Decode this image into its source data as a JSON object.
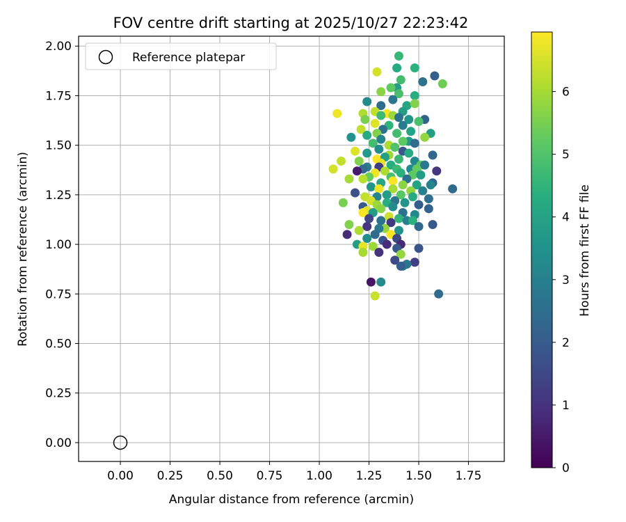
{
  "chart_data": {
    "type": "scatter",
    "title": "FOV centre drift starting at 2025/10/27 22:23:42",
    "xlabel": "Angular distance from reference (arcmin)",
    "ylabel": "Rotation from reference (arcmin)",
    "xlim": [
      -0.21,
      1.93
    ],
    "ylim": [
      -0.095,
      2.05
    ],
    "xticks": [
      0.0,
      0.25,
      0.5,
      0.75,
      1.0,
      1.25,
      1.5,
      1.75
    ],
    "xtick_labels": [
      "0.00",
      "0.25",
      "0.50",
      "0.75",
      "1.00",
      "1.25",
      "1.50",
      "1.75"
    ],
    "yticks": [
      0.0,
      0.25,
      0.5,
      0.75,
      1.0,
      1.25,
      1.5,
      1.75,
      2.0
    ],
    "ytick_labels": [
      "0.00",
      "0.25",
      "0.50",
      "0.75",
      "1.00",
      "1.25",
      "1.50",
      "1.75",
      "2.00"
    ],
    "grid": true,
    "legend": {
      "position": "top-left",
      "entries": [
        "Reference platepar"
      ]
    },
    "reference_point": {
      "x": 0.0,
      "y": 0.0,
      "label": "Reference platepar"
    },
    "colorbar": {
      "label": "Hours from first FF file",
      "min": 0,
      "max": 6.95,
      "ticks": [
        0,
        1,
        2,
        3,
        4,
        5,
        6
      ],
      "tick_labels": [
        "0",
        "1",
        "2",
        "3",
        "4",
        "5",
        "6"
      ]
    },
    "points": [
      [
        1.4,
        1.95,
        4.6
      ],
      [
        1.39,
        1.89,
        4.2
      ],
      [
        1.48,
        1.89,
        4.4
      ],
      [
        1.29,
        1.87,
        6.5
      ],
      [
        1.58,
        1.85,
        2.1
      ],
      [
        1.52,
        1.82,
        2.6
      ],
      [
        1.62,
        1.81,
        5.4
      ],
      [
        1.41,
        1.83,
        4.8
      ],
      [
        1.39,
        1.79,
        3.8
      ],
      [
        1.36,
        1.79,
        5.2
      ],
      [
        1.31,
        1.77,
        5.7
      ],
      [
        1.4,
        1.76,
        4.9
      ],
      [
        1.48,
        1.75,
        4.3
      ],
      [
        1.37,
        1.73,
        2.7
      ],
      [
        1.24,
        1.72,
        3.3
      ],
      [
        1.31,
        1.7,
        2.4
      ],
      [
        1.44,
        1.7,
        4.1
      ],
      [
        1.48,
        1.71,
        5.6
      ],
      [
        1.42,
        1.67,
        3.9
      ],
      [
        1.22,
        1.66,
        6.1
      ],
      [
        1.28,
        1.67,
        6.3
      ],
      [
        1.09,
        1.66,
        6.8
      ],
      [
        1.34,
        1.66,
        6.9
      ],
      [
        1.37,
        1.65,
        5.9
      ],
      [
        1.31,
        1.65,
        4.7
      ],
      [
        1.4,
        1.64,
        2.6
      ],
      [
        1.45,
        1.63,
        3.6
      ],
      [
        1.53,
        1.63,
        2.2
      ],
      [
        1.5,
        1.62,
        4.9
      ],
      [
        1.23,
        1.63,
        5.5
      ],
      [
        1.28,
        1.61,
        6.6
      ],
      [
        1.35,
        1.6,
        4.5
      ],
      [
        1.42,
        1.6,
        2.9
      ],
      [
        1.21,
        1.58,
        6.3
      ],
      [
        1.32,
        1.58,
        2.6
      ],
      [
        1.56,
        1.56,
        3.9
      ],
      [
        1.46,
        1.57,
        4.0
      ],
      [
        1.39,
        1.56,
        4.8
      ],
      [
        1.29,
        1.56,
        5.6
      ],
      [
        1.24,
        1.55,
        4.2
      ],
      [
        1.16,
        1.54,
        3.5
      ],
      [
        1.53,
        1.54,
        5.8
      ],
      [
        1.35,
        1.5,
        6.1
      ],
      [
        1.45,
        1.52,
        3.7
      ],
      [
        1.42,
        1.52,
        5.2
      ],
      [
        1.31,
        1.53,
        3.1
      ],
      [
        1.48,
        1.51,
        2.4
      ],
      [
        1.27,
        1.51,
        4.8
      ],
      [
        1.38,
        1.49,
        5.0
      ],
      [
        1.3,
        1.48,
        3.3
      ],
      [
        1.18,
        1.47,
        6.6
      ],
      [
        1.42,
        1.47,
        1.9
      ],
      [
        1.45,
        1.46,
        4.2
      ],
      [
        1.24,
        1.46,
        3.7
      ],
      [
        1.35,
        1.45,
        5.9
      ],
      [
        1.57,
        1.45,
        2.3
      ],
      [
        1.29,
        1.43,
        6.9
      ],
      [
        1.33,
        1.44,
        3.9
      ],
      [
        1.4,
        1.43,
        4.6
      ],
      [
        1.48,
        1.42,
        3.2
      ],
      [
        1.2,
        1.42,
        5.6
      ],
      [
        1.31,
        1.41,
        6.7
      ],
      [
        1.11,
        1.42,
        6.3
      ],
      [
        1.51,
        1.4,
        5.1
      ],
      [
        1.36,
        1.4,
        4.3
      ],
      [
        1.53,
        1.4,
        2.8
      ],
      [
        1.24,
        1.39,
        2.9
      ],
      [
        1.3,
        1.39,
        1.2
      ],
      [
        1.39,
        1.38,
        4.7
      ],
      [
        1.46,
        1.38,
        3.3
      ],
      [
        1.49,
        1.38,
        5.3
      ],
      [
        1.22,
        1.38,
        2.4
      ],
      [
        1.07,
        1.38,
        6.5
      ],
      [
        1.33,
        1.37,
        6.1
      ],
      [
        1.59,
        1.37,
        1.1
      ],
      [
        1.19,
        1.37,
        0.5
      ],
      [
        1.28,
        1.36,
        6.8
      ],
      [
        1.41,
        1.36,
        4.4
      ],
      [
        1.47,
        1.35,
        5.2
      ],
      [
        1.51,
        1.35,
        3.8
      ],
      [
        1.36,
        1.34,
        4.9
      ],
      [
        1.25,
        1.34,
        5.3
      ],
      [
        1.15,
        1.33,
        6.0
      ],
      [
        1.22,
        1.33,
        6.2
      ],
      [
        1.44,
        1.33,
        2.6
      ],
      [
        1.37,
        1.32,
        6.9
      ],
      [
        1.57,
        1.31,
        2.2
      ],
      [
        1.31,
        1.31,
        4.1
      ],
      [
        1.49,
        1.3,
        4.0
      ],
      [
        1.42,
        1.3,
        5.7
      ],
      [
        1.56,
        1.3,
        3.1
      ],
      [
        1.26,
        1.29,
        3.6
      ],
      [
        1.67,
        1.28,
        2.4
      ],
      [
        1.37,
        1.28,
        6.0
      ],
      [
        1.3,
        1.28,
        6.8
      ],
      [
        1.46,
        1.27,
        5.8
      ],
      [
        1.52,
        1.27,
        3.0
      ],
      [
        1.18,
        1.26,
        1.7
      ],
      [
        1.41,
        1.25,
        5.1
      ],
      [
        1.34,
        1.25,
        3.8
      ],
      [
        1.23,
        1.24,
        6.3
      ],
      [
        1.29,
        1.24,
        3.1
      ],
      [
        1.47,
        1.24,
        4.2
      ],
      [
        1.55,
        1.23,
        2.5
      ],
      [
        1.38,
        1.22,
        2.7
      ],
      [
        1.26,
        1.22,
        6.5
      ],
      [
        1.34,
        1.21,
        4.3
      ],
      [
        1.43,
        1.21,
        3.6
      ],
      [
        1.12,
        1.21,
        5.5
      ],
      [
        1.29,
        1.2,
        5.9
      ],
      [
        1.22,
        1.19,
        1.9
      ],
      [
        1.5,
        1.2,
        2.0
      ],
      [
        1.55,
        1.18,
        2.2
      ],
      [
        1.37,
        1.19,
        3.3
      ],
      [
        1.24,
        1.17,
        6.6
      ],
      [
        1.31,
        1.18,
        5.7
      ],
      [
        1.42,
        1.16,
        2.6
      ],
      [
        1.27,
        1.16,
        3.8
      ],
      [
        1.22,
        1.16,
        6.9
      ],
      [
        1.48,
        1.15,
        3.2
      ],
      [
        1.35,
        1.14,
        6.4
      ],
      [
        1.4,
        1.13,
        4.5
      ],
      [
        1.25,
        1.13,
        1.4
      ],
      [
        1.44,
        1.12,
        3.0
      ],
      [
        1.31,
        1.12,
        2.6
      ],
      [
        1.47,
        1.12,
        4.4
      ],
      [
        1.36,
        1.11,
        1.2
      ],
      [
        1.57,
        1.1,
        1.9
      ],
      [
        1.15,
        1.1,
        5.6
      ],
      [
        1.24,
        1.09,
        1.1
      ],
      [
        1.33,
        1.08,
        5.8
      ],
      [
        1.3,
        1.08,
        2.8
      ],
      [
        1.5,
        1.09,
        2.3
      ],
      [
        1.4,
        1.07,
        3.5
      ],
      [
        1.2,
        1.07,
        6.1
      ],
      [
        1.36,
        1.05,
        6.9
      ],
      [
        1.14,
        1.05,
        0.8
      ],
      [
        1.28,
        1.05,
        2.4
      ],
      [
        1.24,
        1.03,
        3.4
      ],
      [
        1.39,
        1.03,
        1.5
      ],
      [
        1.32,
        1.02,
        1.8
      ],
      [
        1.19,
        1.0,
        3.9
      ],
      [
        1.34,
        1.0,
        0.9
      ],
      [
        1.41,
        1.0,
        0.8
      ],
      [
        1.27,
        0.99,
        5.9
      ],
      [
        1.22,
        0.99,
        6.7
      ],
      [
        1.39,
        0.98,
        1.9
      ],
      [
        1.5,
        0.98,
        1.8
      ],
      [
        1.22,
        0.96,
        6.0
      ],
      [
        1.3,
        0.96,
        1.0
      ],
      [
        1.41,
        0.95,
        5.8
      ],
      [
        1.38,
        0.92,
        1.6
      ],
      [
        1.48,
        0.91,
        1.3
      ],
      [
        1.42,
        0.89,
        3.1
      ],
      [
        1.44,
        0.9,
        2.7
      ],
      [
        1.41,
        0.89,
        2.1
      ],
      [
        1.26,
        0.81,
        0.4
      ],
      [
        1.31,
        0.81,
        3.3
      ],
      [
        1.6,
        0.75,
        2.4
      ],
      [
        1.28,
        0.74,
        6.4
      ]
    ]
  }
}
